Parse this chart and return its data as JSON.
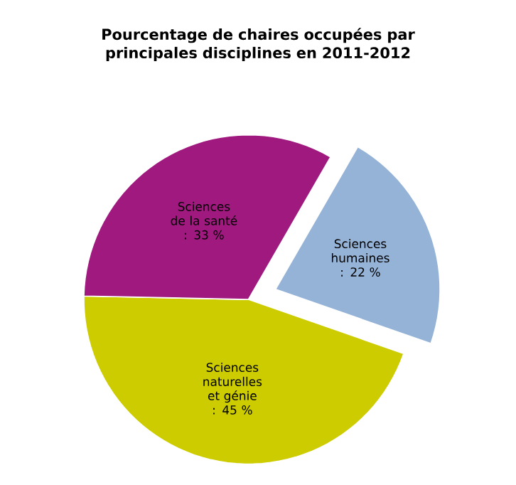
{
  "chart_data": {
    "type": "pie",
    "title": "Pourcentage de chaires occupées par principales disciplines en 2011-2012",
    "categories": [
      "Sciences humaines",
      "Sciences naturelles et génie",
      "Sciences de la santé"
    ],
    "values": [
      22,
      45,
      33
    ],
    "value_labels": [
      ": 22 %",
      ": 45 %",
      ": 33 %"
    ],
    "colors": [
      "#95b3d7",
      "#cccc00",
      "#a0197f"
    ]
  }
}
